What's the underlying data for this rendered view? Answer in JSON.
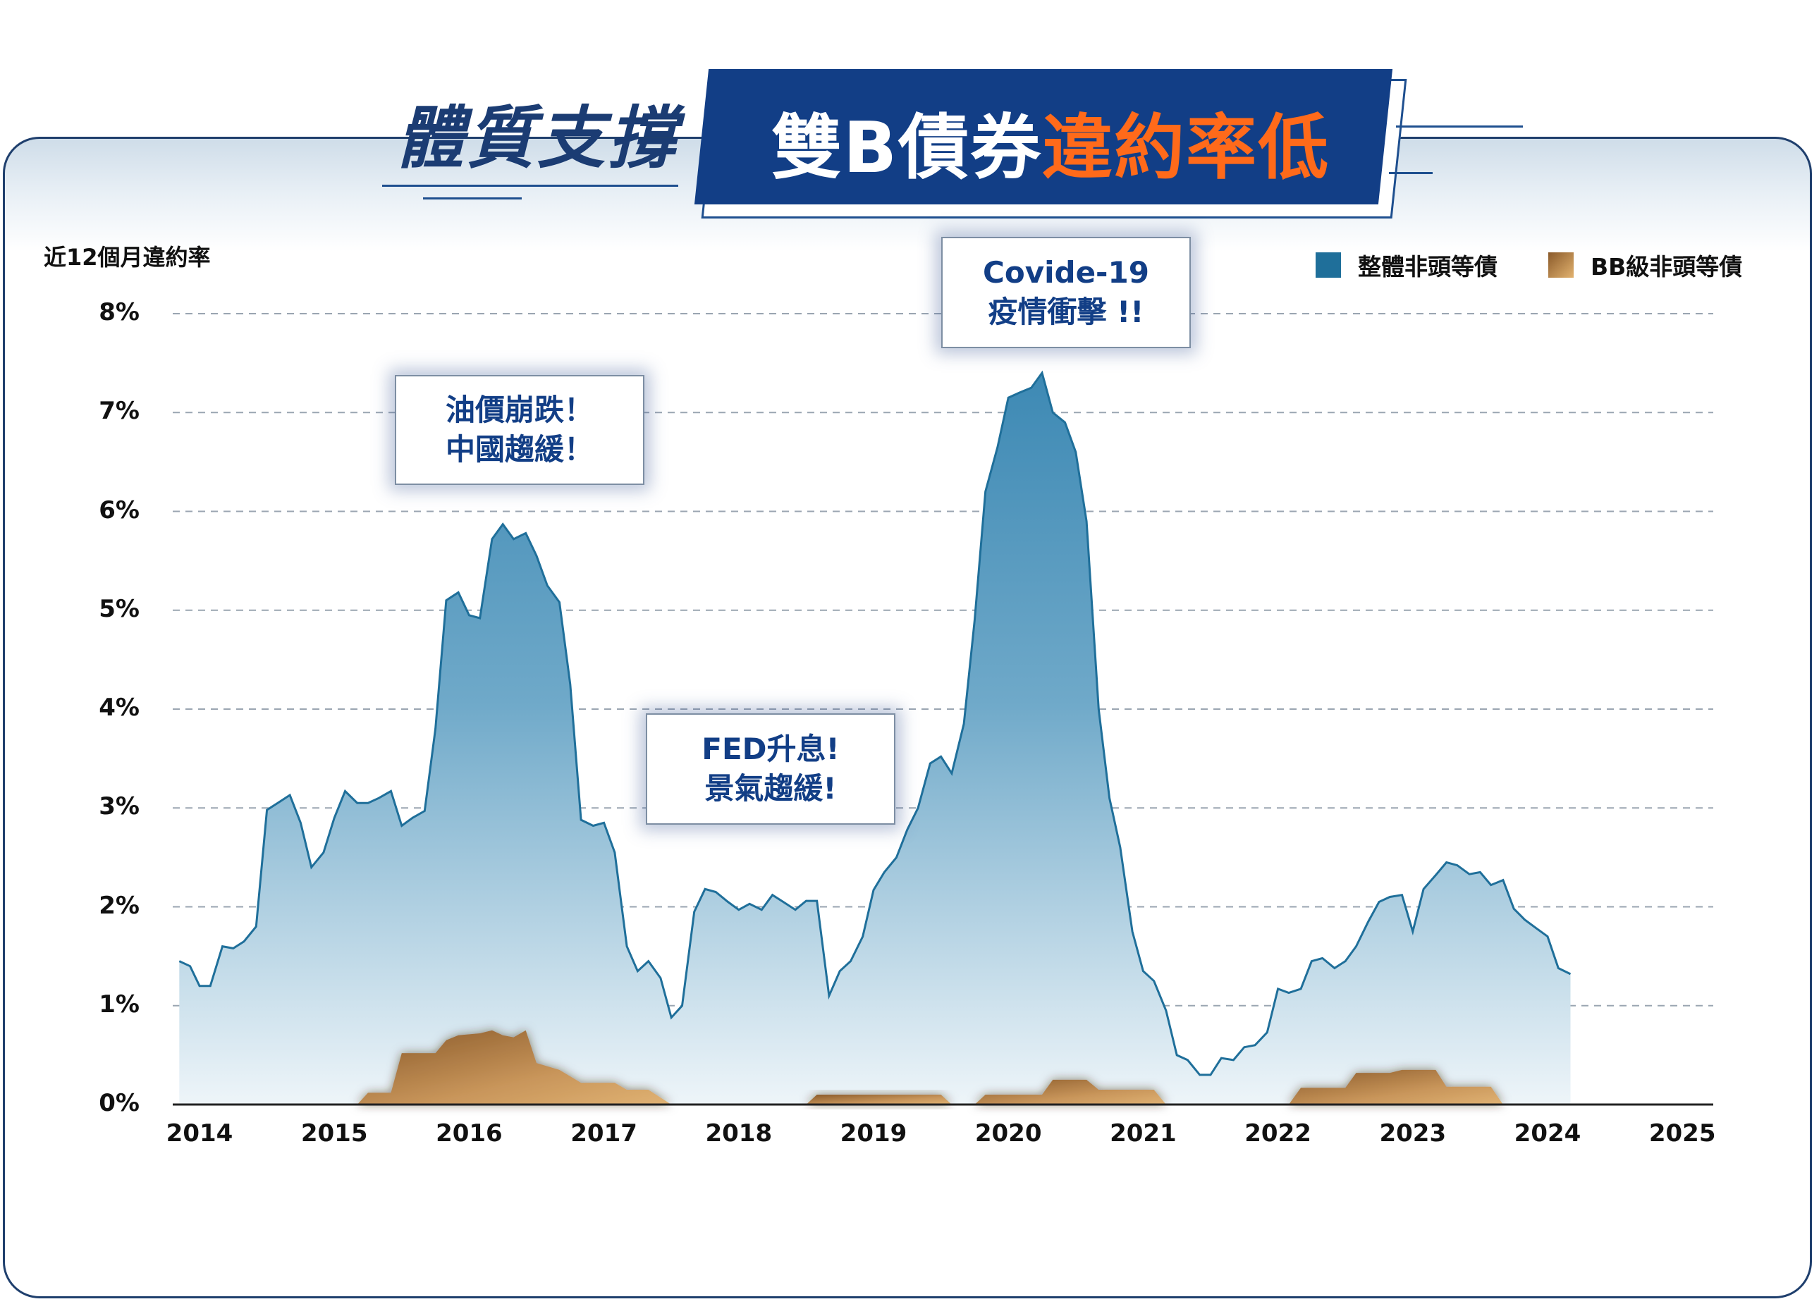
{
  "header": {
    "title_left": "體質支撐",
    "title_main_white": "雙B債券",
    "title_main_orange": "違約率低"
  },
  "colors": {
    "navy": "#123e86",
    "orange": "#ff6a1a",
    "overall_series": "#1f6f9a",
    "bb_series": "#b07a3f"
  },
  "chart_data": {
    "type": "area",
    "ylabel": "近12個月違約率",
    "y_ticks": [
      "0%",
      "1%",
      "2%",
      "3%",
      "4%",
      "5%",
      "6%",
      "7%",
      "8%"
    ],
    "ylim": [
      0,
      8
    ],
    "x_ticks": [
      "2014",
      "2015",
      "2016",
      "2017",
      "2018",
      "2019",
      "2020",
      "2021",
      "2022",
      "2023",
      "2024",
      "2025"
    ],
    "xlim": [
      2014,
      2025.2
    ],
    "grid": "horizontal dashed",
    "legend_position": "top-right",
    "series": [
      {
        "name": "整體非頭等債",
        "points": [
          [
            2013.85,
            1.45
          ],
          [
            2013.93,
            1.4
          ],
          [
            2014.0,
            1.2
          ],
          [
            2014.08,
            1.2
          ],
          [
            2014.17,
            1.6
          ],
          [
            2014.25,
            1.58
          ],
          [
            2014.33,
            1.65
          ],
          [
            2014.42,
            1.8
          ],
          [
            2014.5,
            2.98
          ],
          [
            2014.58,
            3.05
          ],
          [
            2014.67,
            3.13
          ],
          [
            2014.75,
            2.85
          ],
          [
            2014.83,
            2.4
          ],
          [
            2014.92,
            2.55
          ],
          [
            2015.0,
            2.9
          ],
          [
            2015.08,
            3.17
          ],
          [
            2015.17,
            3.05
          ],
          [
            2015.25,
            3.05
          ],
          [
            2015.33,
            3.1
          ],
          [
            2015.42,
            3.17
          ],
          [
            2015.5,
            2.82
          ],
          [
            2015.58,
            2.9
          ],
          [
            2015.67,
            2.97
          ],
          [
            2015.75,
            3.8
          ],
          [
            2015.83,
            5.1
          ],
          [
            2015.92,
            5.18
          ],
          [
            2016.0,
            4.95
          ],
          [
            2016.08,
            4.92
          ],
          [
            2016.17,
            5.72
          ],
          [
            2016.25,
            5.87
          ],
          [
            2016.33,
            5.72
          ],
          [
            2016.42,
            5.78
          ],
          [
            2016.5,
            5.55
          ],
          [
            2016.58,
            5.25
          ],
          [
            2016.67,
            5.08
          ],
          [
            2016.75,
            4.25
          ],
          [
            2016.83,
            2.88
          ],
          [
            2016.92,
            2.82
          ],
          [
            2017.0,
            2.85
          ],
          [
            2017.08,
            2.55
          ],
          [
            2017.17,
            1.6
          ],
          [
            2017.25,
            1.35
          ],
          [
            2017.33,
            1.45
          ],
          [
            2017.42,
            1.28
          ],
          [
            2017.5,
            0.88
          ],
          [
            2017.58,
            1.0
          ],
          [
            2017.67,
            1.95
          ],
          [
            2017.75,
            2.18
          ],
          [
            2017.83,
            2.15
          ],
          [
            2017.92,
            2.05
          ],
          [
            2018.0,
            1.97
          ],
          [
            2018.08,
            2.03
          ],
          [
            2018.17,
            1.97
          ],
          [
            2018.25,
            2.12
          ],
          [
            2018.33,
            2.05
          ],
          [
            2018.42,
            1.97
          ],
          [
            2018.5,
            2.06
          ],
          [
            2018.58,
            2.06
          ],
          [
            2018.67,
            1.1
          ],
          [
            2018.75,
            1.35
          ],
          [
            2018.83,
            1.45
          ],
          [
            2018.92,
            1.7
          ],
          [
            2019.0,
            2.17
          ],
          [
            2019.08,
            2.35
          ],
          [
            2019.17,
            2.5
          ],
          [
            2019.25,
            2.78
          ],
          [
            2019.33,
            3.0
          ],
          [
            2019.42,
            3.45
          ],
          [
            2019.5,
            3.52
          ],
          [
            2019.58,
            3.35
          ],
          [
            2019.67,
            3.85
          ],
          [
            2019.75,
            4.9
          ],
          [
            2019.83,
            6.2
          ],
          [
            2019.92,
            6.65
          ],
          [
            2020.0,
            7.15
          ],
          [
            2020.08,
            7.2
          ],
          [
            2020.17,
            7.25
          ],
          [
            2020.25,
            7.4
          ],
          [
            2020.33,
            7.0
          ],
          [
            2020.42,
            6.9
          ],
          [
            2020.5,
            6.6
          ],
          [
            2020.58,
            5.9
          ],
          [
            2020.67,
            4.0
          ],
          [
            2020.75,
            3.1
          ],
          [
            2020.83,
            2.6
          ],
          [
            2020.92,
            1.75
          ],
          [
            2021.0,
            1.35
          ],
          [
            2021.08,
            1.25
          ],
          [
            2021.17,
            0.95
          ],
          [
            2021.25,
            0.5
          ],
          [
            2021.33,
            0.45
          ],
          [
            2021.42,
            0.3
          ],
          [
            2021.5,
            0.3
          ],
          [
            2021.58,
            0.47
          ],
          [
            2021.67,
            0.45
          ],
          [
            2021.75,
            0.58
          ],
          [
            2021.83,
            0.6
          ],
          [
            2021.92,
            0.73
          ],
          [
            2022.0,
            1.17
          ],
          [
            2022.08,
            1.13
          ],
          [
            2022.17,
            1.17
          ],
          [
            2022.25,
            1.45
          ],
          [
            2022.33,
            1.48
          ],
          [
            2022.42,
            1.38
          ],
          [
            2022.5,
            1.45
          ],
          [
            2022.58,
            1.6
          ],
          [
            2022.67,
            1.85
          ],
          [
            2022.75,
            2.05
          ],
          [
            2022.83,
            2.1
          ],
          [
            2022.92,
            2.12
          ],
          [
            2023.0,
            1.75
          ],
          [
            2023.08,
            2.18
          ],
          [
            2023.17,
            2.32
          ],
          [
            2023.25,
            2.45
          ],
          [
            2023.33,
            2.42
          ],
          [
            2023.42,
            2.33
          ],
          [
            2023.5,
            2.35
          ],
          [
            2023.58,
            2.22
          ],
          [
            2023.67,
            2.27
          ],
          [
            2023.75,
            1.98
          ],
          [
            2023.83,
            1.87
          ],
          [
            2023.92,
            1.78
          ],
          [
            2024.0,
            1.7
          ],
          [
            2024.08,
            1.38
          ],
          [
            2024.17,
            1.32
          ]
        ]
      },
      {
        "name": "BB級非頭等債",
        "points": [
          [
            2015.17,
            0.0
          ],
          [
            2015.25,
            0.12
          ],
          [
            2015.42,
            0.12
          ],
          [
            2015.5,
            0.52
          ],
          [
            2015.75,
            0.52
          ],
          [
            2015.83,
            0.65
          ],
          [
            2015.92,
            0.7
          ],
          [
            2016.08,
            0.72
          ],
          [
            2016.17,
            0.75
          ],
          [
            2016.25,
            0.7
          ],
          [
            2016.33,
            0.68
          ],
          [
            2016.42,
            0.75
          ],
          [
            2016.5,
            0.42
          ],
          [
            2016.67,
            0.35
          ],
          [
            2016.83,
            0.22
          ],
          [
            2017.08,
            0.22
          ],
          [
            2017.17,
            0.15
          ],
          [
            2017.33,
            0.15
          ],
          [
            2017.5,
            0.0
          ],
          [
            2018.5,
            0.0
          ],
          [
            2018.58,
            0.1
          ],
          [
            2019.5,
            0.1
          ],
          [
            2019.58,
            0.0
          ],
          [
            2019.75,
            0.0
          ],
          [
            2019.83,
            0.1
          ],
          [
            2020.25,
            0.1
          ],
          [
            2020.33,
            0.25
          ],
          [
            2020.58,
            0.25
          ],
          [
            2020.67,
            0.15
          ],
          [
            2021.08,
            0.15
          ],
          [
            2021.17,
            0.0
          ],
          [
            2022.08,
            0.0
          ],
          [
            2022.17,
            0.17
          ],
          [
            2022.5,
            0.17
          ],
          [
            2022.58,
            0.32
          ],
          [
            2022.83,
            0.32
          ],
          [
            2022.92,
            0.35
          ],
          [
            2023.17,
            0.35
          ],
          [
            2023.25,
            0.18
          ],
          [
            2023.58,
            0.18
          ],
          [
            2023.67,
            0.0
          ]
        ]
      }
    ],
    "annotations": [
      {
        "lines": [
          "油價崩跌！",
          "中國趨緩！"
        ]
      },
      {
        "lines": [
          "FED升息!",
          "景氣趨緩!"
        ]
      },
      {
        "lines": [
          "Covide-19",
          "疫情衝擊 !!"
        ]
      }
    ]
  }
}
